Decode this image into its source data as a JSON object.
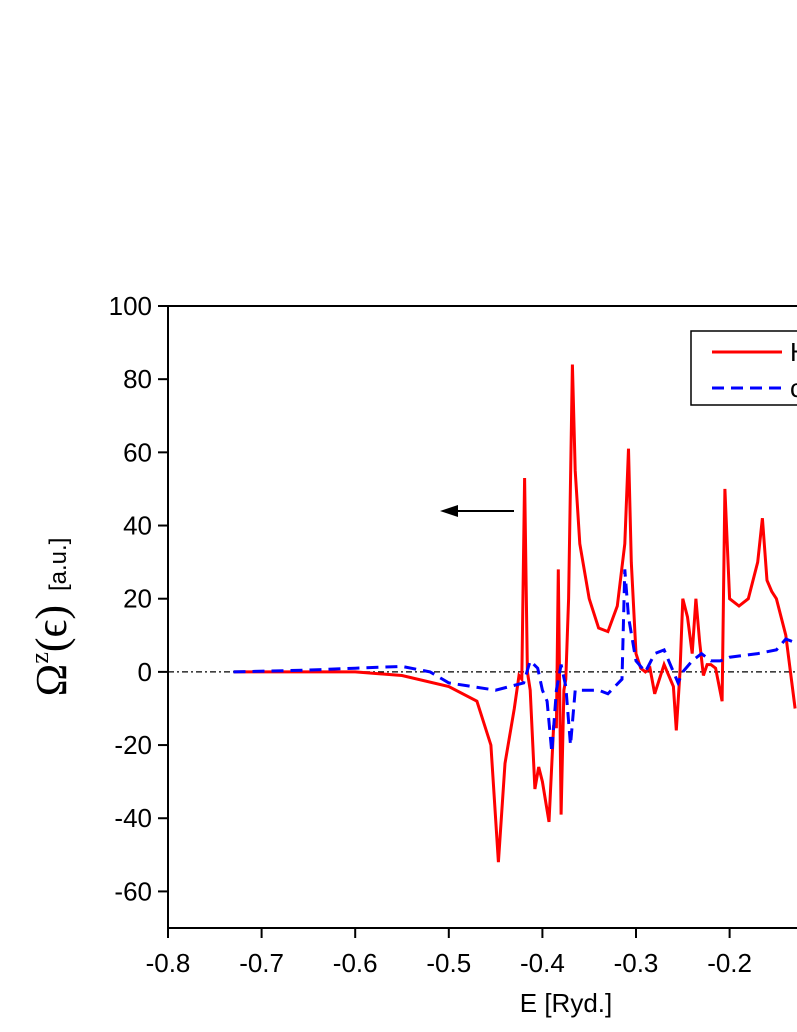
{
  "chart_data": {
    "type": "line",
    "xlabel": "E [Ryd.]",
    "ylabel": "Ω",
    "ylabel_sup": "z",
    "ylabel_arg": "(ϵ)",
    "ylabel_unit": "[a.u.]",
    "xlim": [
      -0.8,
      -0.128
    ],
    "ylim": [
      -70,
      100
    ],
    "xticks": [
      -0.8,
      -0.7,
      -0.6,
      -0.5,
      -0.4,
      -0.3,
      -0.2
    ],
    "yticks": [
      -60,
      -40,
      -20,
      0,
      20,
      40,
      60,
      80,
      100
    ],
    "zero_line": true,
    "legend": "upper right",
    "series": [
      {
        "name": "H",
        "color": "#ff0000",
        "dash": false,
        "x": [
          -0.73,
          -0.6,
          -0.55,
          -0.5,
          -0.47,
          -0.455,
          -0.447,
          -0.44,
          -0.43,
          -0.425,
          -0.422,
          -0.419,
          -0.416,
          -0.413,
          -0.408,
          -0.404,
          -0.4,
          -0.393,
          -0.388,
          -0.385,
          -0.383,
          -0.38,
          -0.377,
          -0.375,
          -0.372,
          -0.368,
          -0.365,
          -0.36,
          -0.35,
          -0.34,
          -0.33,
          -0.32,
          -0.312,
          -0.308,
          -0.305,
          -0.3,
          -0.295,
          -0.29,
          -0.285,
          -0.28,
          -0.27,
          -0.26,
          -0.257,
          -0.253,
          -0.25,
          -0.245,
          -0.24,
          -0.236,
          -0.232,
          -0.228,
          -0.224,
          -0.22,
          -0.215,
          -0.208,
          -0.205,
          -0.2,
          -0.19,
          -0.18,
          -0.17,
          -0.165,
          -0.16,
          -0.155,
          -0.15,
          -0.14,
          -0.13
        ],
        "values": [
          0,
          0,
          -1,
          -4,
          -8,
          -20,
          -52,
          -25,
          -10,
          -1,
          -2,
          53,
          0,
          -5,
          -32,
          -26,
          -30,
          -41,
          -15,
          -15,
          28,
          -39,
          -5,
          -2,
          20,
          84,
          55,
          35,
          20,
          12,
          11,
          18,
          35,
          61,
          30,
          5,
          1,
          0,
          1,
          -6,
          2,
          -4,
          -16,
          0,
          20,
          15,
          5,
          20,
          8,
          -1,
          2,
          2,
          1,
          -8,
          50,
          20,
          18,
          20,
          30,
          42,
          25,
          22,
          20,
          10,
          -10
        ]
      },
      {
        "name": "c",
        "color": "#0000ff",
        "dash": true,
        "x": [
          -0.73,
          -0.65,
          -0.6,
          -0.55,
          -0.52,
          -0.5,
          -0.45,
          -0.42,
          -0.413,
          -0.405,
          -0.4,
          -0.395,
          -0.39,
          -0.385,
          -0.38,
          -0.375,
          -0.37,
          -0.365,
          -0.34,
          -0.33,
          -0.315,
          -0.312,
          -0.308,
          -0.3,
          -0.29,
          -0.28,
          -0.27,
          -0.26,
          -0.255,
          -0.25,
          -0.24,
          -0.23,
          -0.22,
          -0.21,
          -0.2,
          -0.17,
          -0.15,
          -0.14,
          -0.13
        ],
        "values": [
          0,
          0.5,
          1,
          1.5,
          0,
          -3,
          -5,
          -3,
          3,
          1,
          -5,
          -8,
          -22,
          -5,
          2,
          -4,
          -20,
          -5,
          -5,
          -6,
          -2,
          28,
          15,
          3,
          0,
          5,
          6,
          0,
          -3,
          0,
          3,
          5,
          3,
          3,
          4,
          5,
          6,
          9,
          8
        ]
      }
    ]
  }
}
